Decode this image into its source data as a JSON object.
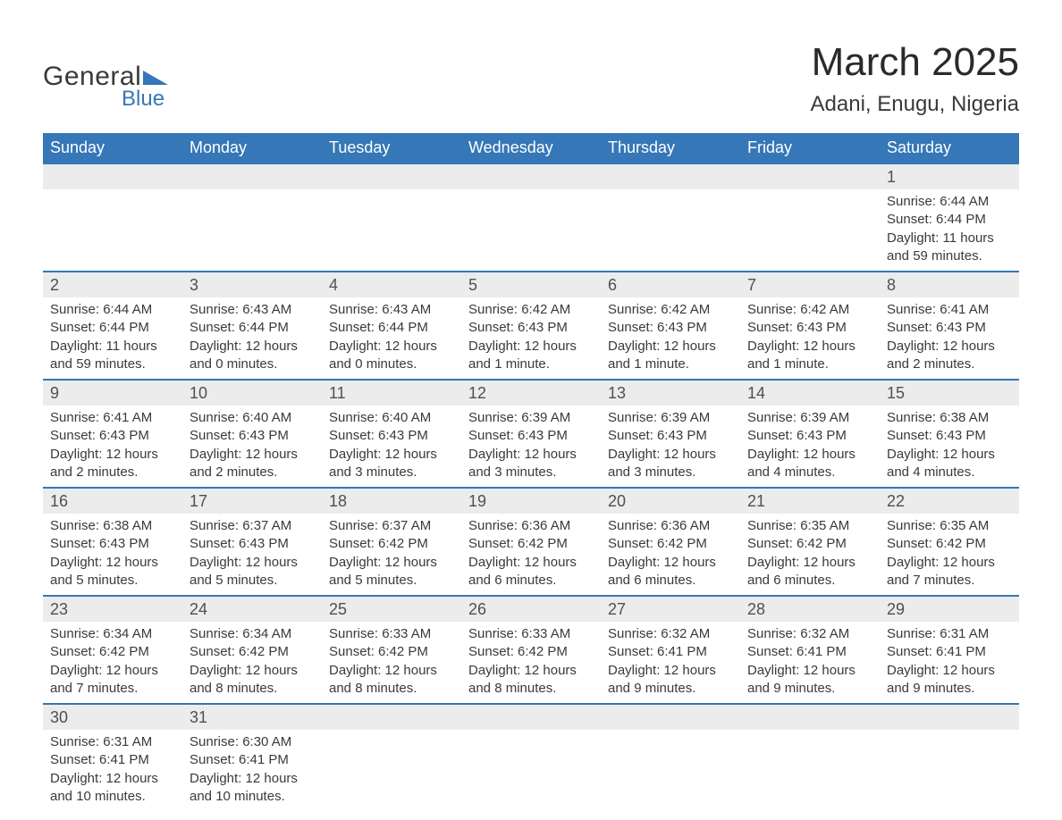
{
  "logo": {
    "text_general": "General",
    "text_blue": "Blue",
    "triangle_color": "#3577b7"
  },
  "title": {
    "month": "March 2025",
    "location": "Adani, Enugu, Nigeria",
    "month_fontsize": 44,
    "location_fontsize": 24,
    "text_color": "#2a2a2a"
  },
  "colors": {
    "header_bg": "#3577b7",
    "header_text": "#ffffff",
    "daynum_bg": "#ececec",
    "row_border": "#3577b7",
    "body_text": "#3a3a3a",
    "page_bg": "#ffffff"
  },
  "day_headers": [
    "Sunday",
    "Monday",
    "Tuesday",
    "Wednesday",
    "Thursday",
    "Friday",
    "Saturday"
  ],
  "weeks": [
    [
      null,
      null,
      null,
      null,
      null,
      null,
      {
        "n": "1",
        "sr": "Sunrise: 6:44 AM",
        "ss": "Sunset: 6:44 PM",
        "dl": "Daylight: 11 hours and 59 minutes."
      }
    ],
    [
      {
        "n": "2",
        "sr": "Sunrise: 6:44 AM",
        "ss": "Sunset: 6:44 PM",
        "dl": "Daylight: 11 hours and 59 minutes."
      },
      {
        "n": "3",
        "sr": "Sunrise: 6:43 AM",
        "ss": "Sunset: 6:44 PM",
        "dl": "Daylight: 12 hours and 0 minutes."
      },
      {
        "n": "4",
        "sr": "Sunrise: 6:43 AM",
        "ss": "Sunset: 6:44 PM",
        "dl": "Daylight: 12 hours and 0 minutes."
      },
      {
        "n": "5",
        "sr": "Sunrise: 6:42 AM",
        "ss": "Sunset: 6:43 PM",
        "dl": "Daylight: 12 hours and 1 minute."
      },
      {
        "n": "6",
        "sr": "Sunrise: 6:42 AM",
        "ss": "Sunset: 6:43 PM",
        "dl": "Daylight: 12 hours and 1 minute."
      },
      {
        "n": "7",
        "sr": "Sunrise: 6:42 AM",
        "ss": "Sunset: 6:43 PM",
        "dl": "Daylight: 12 hours and 1 minute."
      },
      {
        "n": "8",
        "sr": "Sunrise: 6:41 AM",
        "ss": "Sunset: 6:43 PM",
        "dl": "Daylight: 12 hours and 2 minutes."
      }
    ],
    [
      {
        "n": "9",
        "sr": "Sunrise: 6:41 AM",
        "ss": "Sunset: 6:43 PM",
        "dl": "Daylight: 12 hours and 2 minutes."
      },
      {
        "n": "10",
        "sr": "Sunrise: 6:40 AM",
        "ss": "Sunset: 6:43 PM",
        "dl": "Daylight: 12 hours and 2 minutes."
      },
      {
        "n": "11",
        "sr": "Sunrise: 6:40 AM",
        "ss": "Sunset: 6:43 PM",
        "dl": "Daylight: 12 hours and 3 minutes."
      },
      {
        "n": "12",
        "sr": "Sunrise: 6:39 AM",
        "ss": "Sunset: 6:43 PM",
        "dl": "Daylight: 12 hours and 3 minutes."
      },
      {
        "n": "13",
        "sr": "Sunrise: 6:39 AM",
        "ss": "Sunset: 6:43 PM",
        "dl": "Daylight: 12 hours and 3 minutes."
      },
      {
        "n": "14",
        "sr": "Sunrise: 6:39 AM",
        "ss": "Sunset: 6:43 PM",
        "dl": "Daylight: 12 hours and 4 minutes."
      },
      {
        "n": "15",
        "sr": "Sunrise: 6:38 AM",
        "ss": "Sunset: 6:43 PM",
        "dl": "Daylight: 12 hours and 4 minutes."
      }
    ],
    [
      {
        "n": "16",
        "sr": "Sunrise: 6:38 AM",
        "ss": "Sunset: 6:43 PM",
        "dl": "Daylight: 12 hours and 5 minutes."
      },
      {
        "n": "17",
        "sr": "Sunrise: 6:37 AM",
        "ss": "Sunset: 6:43 PM",
        "dl": "Daylight: 12 hours and 5 minutes."
      },
      {
        "n": "18",
        "sr": "Sunrise: 6:37 AM",
        "ss": "Sunset: 6:42 PM",
        "dl": "Daylight: 12 hours and 5 minutes."
      },
      {
        "n": "19",
        "sr": "Sunrise: 6:36 AM",
        "ss": "Sunset: 6:42 PM",
        "dl": "Daylight: 12 hours and 6 minutes."
      },
      {
        "n": "20",
        "sr": "Sunrise: 6:36 AM",
        "ss": "Sunset: 6:42 PM",
        "dl": "Daylight: 12 hours and 6 minutes."
      },
      {
        "n": "21",
        "sr": "Sunrise: 6:35 AM",
        "ss": "Sunset: 6:42 PM",
        "dl": "Daylight: 12 hours and 6 minutes."
      },
      {
        "n": "22",
        "sr": "Sunrise: 6:35 AM",
        "ss": "Sunset: 6:42 PM",
        "dl": "Daylight: 12 hours and 7 minutes."
      }
    ],
    [
      {
        "n": "23",
        "sr": "Sunrise: 6:34 AM",
        "ss": "Sunset: 6:42 PM",
        "dl": "Daylight: 12 hours and 7 minutes."
      },
      {
        "n": "24",
        "sr": "Sunrise: 6:34 AM",
        "ss": "Sunset: 6:42 PM",
        "dl": "Daylight: 12 hours and 8 minutes."
      },
      {
        "n": "25",
        "sr": "Sunrise: 6:33 AM",
        "ss": "Sunset: 6:42 PM",
        "dl": "Daylight: 12 hours and 8 minutes."
      },
      {
        "n": "26",
        "sr": "Sunrise: 6:33 AM",
        "ss": "Sunset: 6:42 PM",
        "dl": "Daylight: 12 hours and 8 minutes."
      },
      {
        "n": "27",
        "sr": "Sunrise: 6:32 AM",
        "ss": "Sunset: 6:41 PM",
        "dl": "Daylight: 12 hours and 9 minutes."
      },
      {
        "n": "28",
        "sr": "Sunrise: 6:32 AM",
        "ss": "Sunset: 6:41 PM",
        "dl": "Daylight: 12 hours and 9 minutes."
      },
      {
        "n": "29",
        "sr": "Sunrise: 6:31 AM",
        "ss": "Sunset: 6:41 PM",
        "dl": "Daylight: 12 hours and 9 minutes."
      }
    ],
    [
      {
        "n": "30",
        "sr": "Sunrise: 6:31 AM",
        "ss": "Sunset: 6:41 PM",
        "dl": "Daylight: 12 hours and 10 minutes."
      },
      {
        "n": "31",
        "sr": "Sunrise: 6:30 AM",
        "ss": "Sunset: 6:41 PM",
        "dl": "Daylight: 12 hours and 10 minutes."
      },
      null,
      null,
      null,
      null,
      null
    ]
  ]
}
